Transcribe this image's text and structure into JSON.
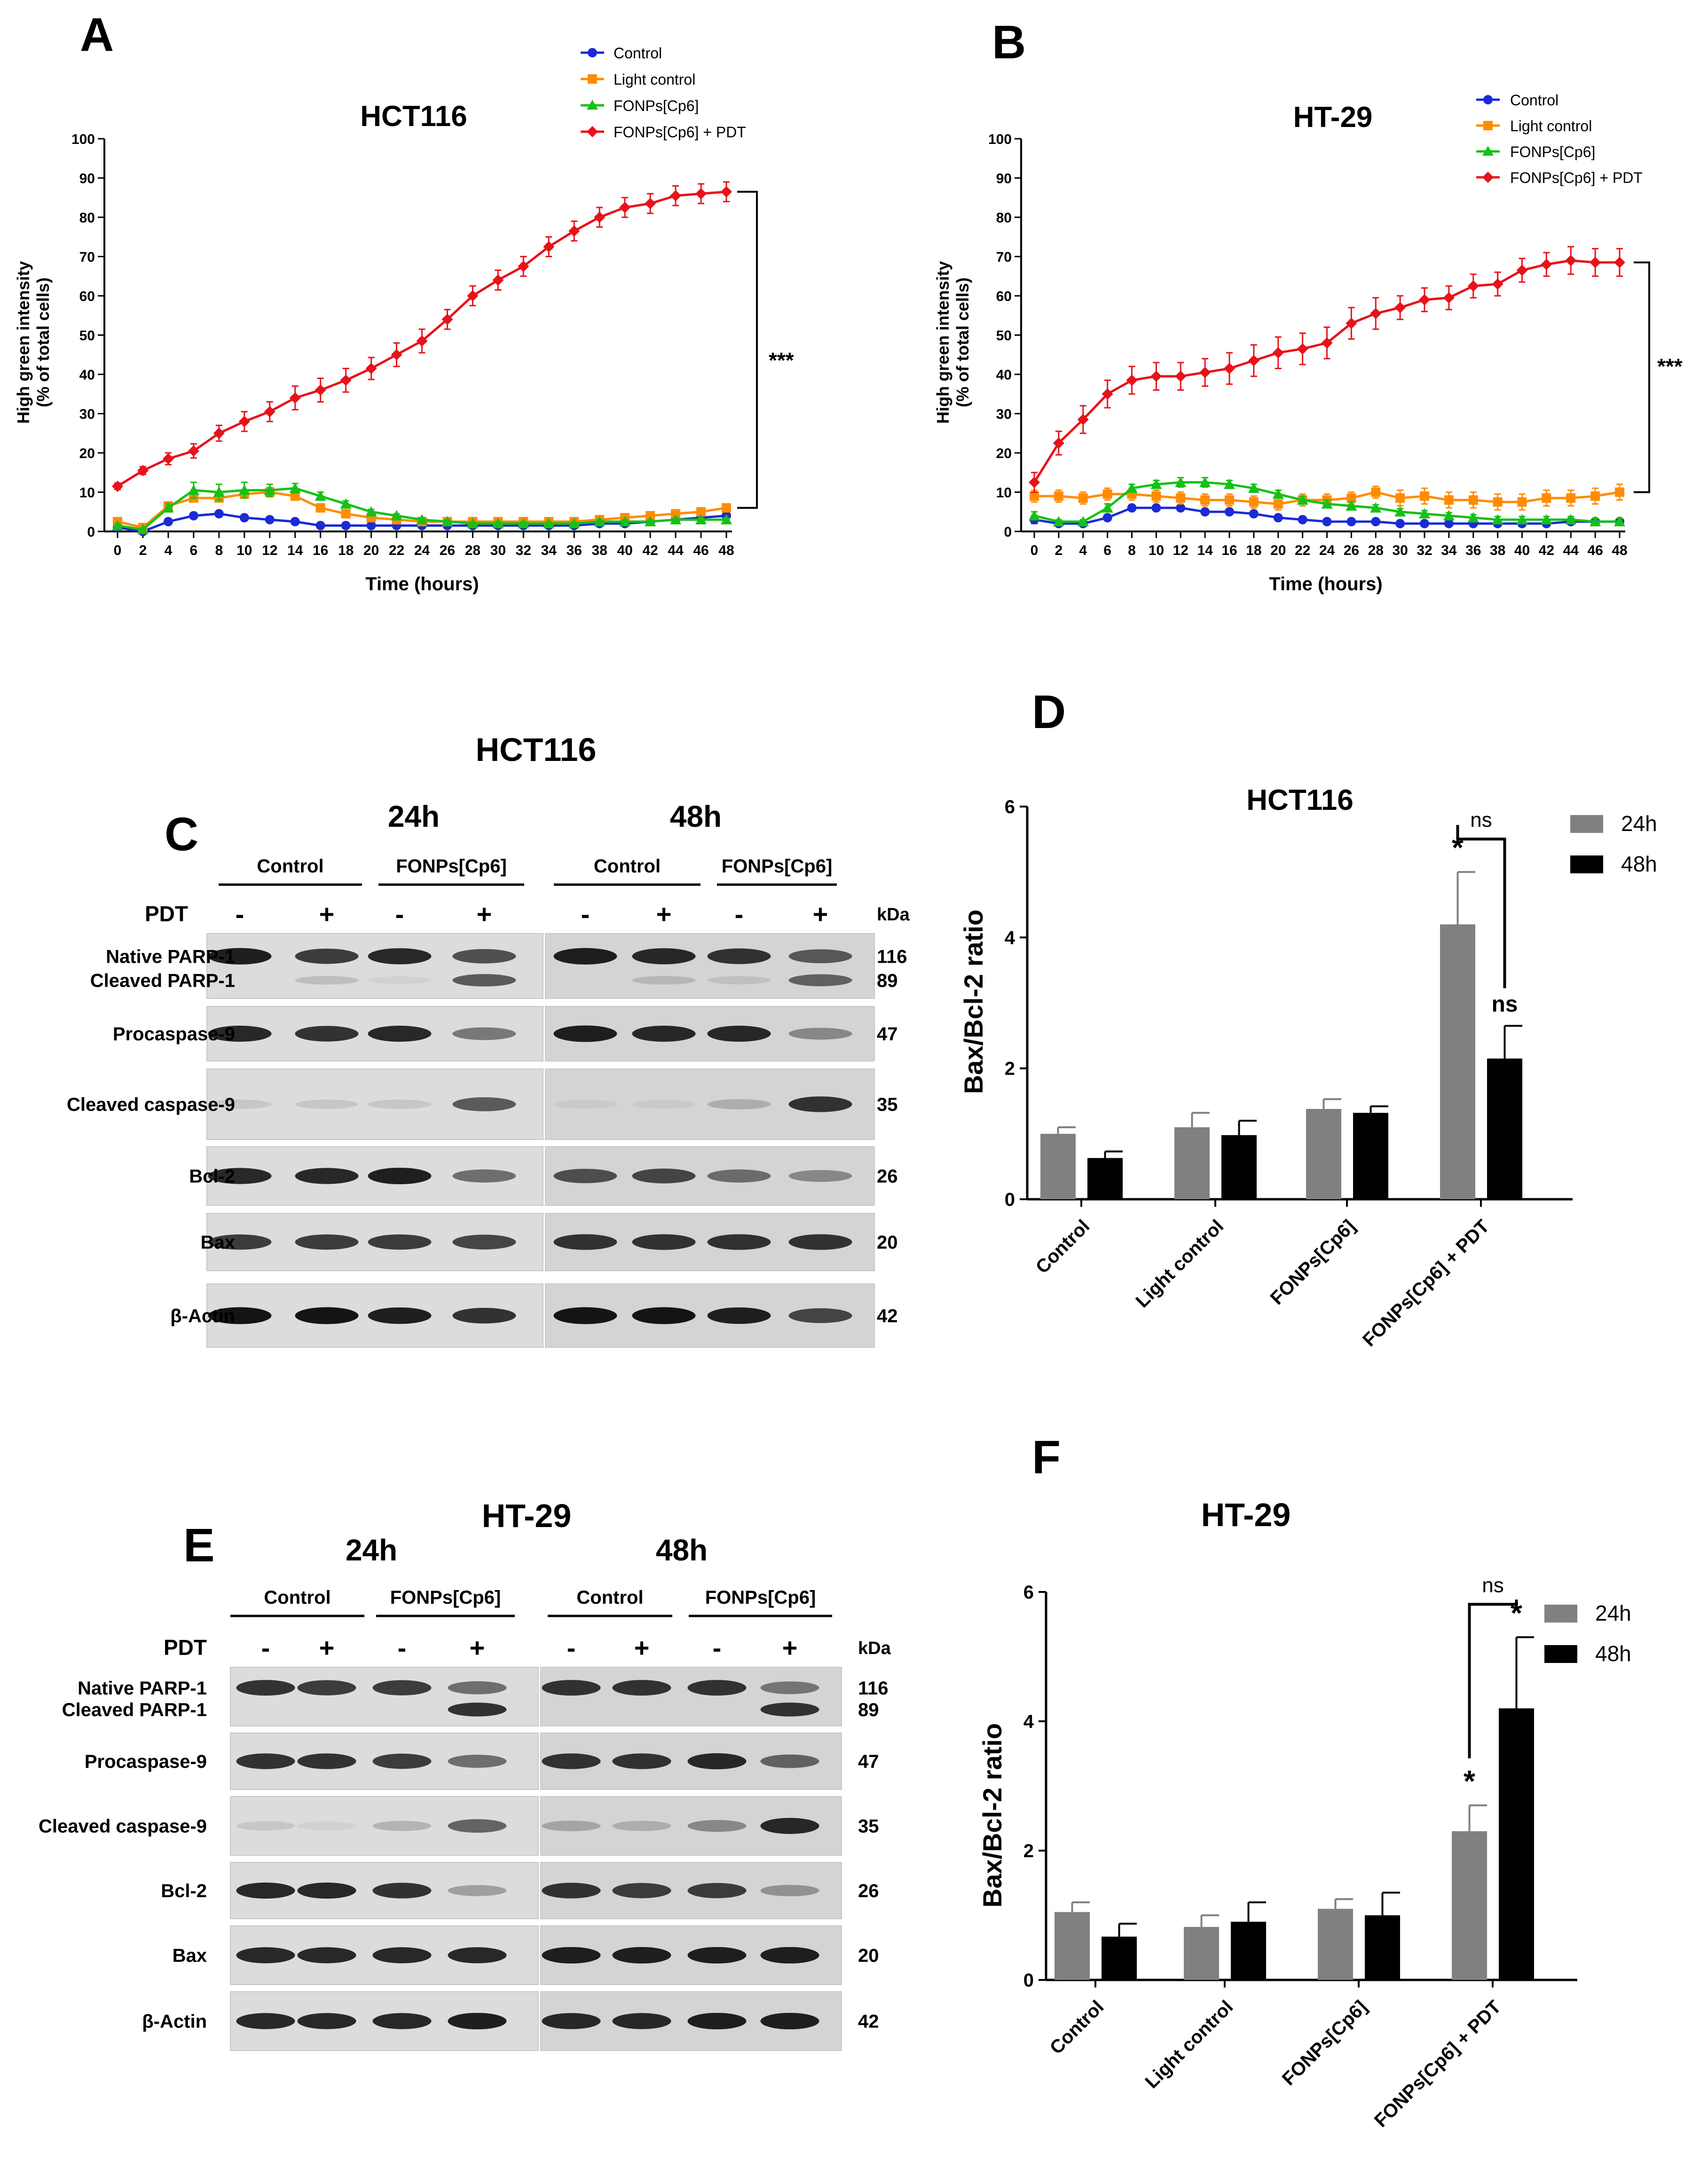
{
  "colors": {
    "control": "#1a2bd6",
    "light_control": "#ff8c00",
    "fonps": "#16c116",
    "fonps_pdt": "#e8121a",
    "bar24": "#808080",
    "bar48": "#000000"
  },
  "panels": {
    "A": {
      "letter": "A",
      "significance": "***"
    },
    "B": {
      "letter": "B",
      "significance": "***"
    },
    "C": {
      "letter": "C",
      "title": "HCT116"
    },
    "D": {
      "letter": "D",
      "sig_pdt_24": "*",
      "sig_pdt_48": "ns",
      "sig_bracket": "ns"
    },
    "E": {
      "letter": "E",
      "title": "HT-29"
    },
    "F": {
      "letter": "F",
      "sig_pdt_24": "*",
      "sig_pdt_48": "*",
      "sig_bracket": "ns"
    }
  },
  "chart_data": [
    {
      "id": "A",
      "type": "line",
      "title": "HCT116",
      "xlabel": "Time (hours)",
      "ylabel": "High green intensity",
      "ylabel2": "(% of total cells)",
      "xlim": [
        0,
        48
      ],
      "ylim": [
        0,
        100
      ],
      "x": [
        0,
        2,
        4,
        6,
        8,
        10,
        12,
        14,
        16,
        18,
        20,
        22,
        24,
        26,
        28,
        30,
        32,
        34,
        36,
        38,
        40,
        42,
        44,
        46,
        48
      ],
      "yticks": [
        0,
        10,
        20,
        30,
        40,
        50,
        60,
        70,
        80,
        90,
        100
      ],
      "series": [
        {
          "name": "Control",
          "key": "control",
          "marker": "circle",
          "values": [
            1,
            0,
            2.5,
            4,
            4.5,
            3.5,
            3,
            2.5,
            1.5,
            1.5,
            1.5,
            1.5,
            1.5,
            1.5,
            1.5,
            1.5,
            1.5,
            1.5,
            1.5,
            2,
            2,
            2.5,
            3,
            3.5,
            4
          ],
          "errors": [
            0.5,
            0.3,
            0.5,
            0.5,
            0.5,
            0.5,
            0.5,
            0.5,
            0.5,
            0.5,
            0.5,
            0.5,
            0.5,
            0.5,
            0.5,
            0.5,
            0.5,
            0.5,
            0.5,
            0.5,
            0.5,
            0.5,
            0.5,
            0.5,
            0.5
          ]
        },
        {
          "name": "Light control",
          "key": "light_control",
          "marker": "square",
          "values": [
            2.5,
            1,
            6.5,
            8.5,
            8.5,
            9.5,
            10,
            9,
            6,
            4.5,
            3.5,
            3,
            2.5,
            2.5,
            2.5,
            2.5,
            2.5,
            2.5,
            2.5,
            3,
            3.5,
            4,
            4.5,
            5,
            6
          ],
          "errors": [
            0.5,
            0.5,
            0.8,
            1,
            1,
            1,
            1.2,
            1,
            0.8,
            0.6,
            0.6,
            0.5,
            0.5,
            0.5,
            0.5,
            0.5,
            0.5,
            0.5,
            0.5,
            0.5,
            0.5,
            0.5,
            0.6,
            0.6,
            0.6
          ]
        },
        {
          "name": "FONPs[Cp6]",
          "key": "fonps",
          "marker": "triangle",
          "values": [
            1.5,
            0.5,
            6,
            10.5,
            10,
            10.5,
            10.5,
            11,
            9,
            7,
            5,
            4,
            3,
            2.5,
            2,
            2,
            2,
            2,
            2,
            2.5,
            2.5,
            2.5,
            3,
            3,
            3
          ],
          "errors": [
            0.4,
            0.3,
            1,
            2,
            2,
            2,
            1.5,
            1.2,
            1,
            0.8,
            0.6,
            0.5,
            0.5,
            0.4,
            0.4,
            0.4,
            0.4,
            0.4,
            0.4,
            0.4,
            0.4,
            0.4,
            0.4,
            0.4,
            0.4
          ]
        },
        {
          "name": "FONPs[Cp6] + PDT",
          "key": "fonps_pdt",
          "marker": "diamond",
          "values": [
            11.5,
            15.5,
            18.5,
            20.5,
            25,
            28,
            30.5,
            34,
            36,
            38.5,
            41.5,
            45,
            48.5,
            54,
            60,
            64,
            67.5,
            72.5,
            76.5,
            80,
            82.5,
            83.5,
            85.5,
            86,
            86.5
          ],
          "errors": [
            0.8,
            1,
            1.5,
            1.8,
            2,
            2.5,
            2.5,
            3,
            3,
            3,
            2.8,
            3,
            3,
            2.5,
            2.5,
            2.5,
            2.5,
            2.5,
            2.5,
            2.5,
            2.5,
            2.5,
            2.5,
            2.5,
            2.5
          ]
        }
      ]
    },
    {
      "id": "B",
      "type": "line",
      "title": "HT-29",
      "xlabel": "Time (hours)",
      "ylabel": "High green intensity",
      "ylabel2": "(% of total cells)",
      "xlim": [
        0,
        48
      ],
      "ylim": [
        0,
        100
      ],
      "x": [
        0,
        2,
        4,
        6,
        8,
        10,
        12,
        14,
        16,
        18,
        20,
        22,
        24,
        26,
        28,
        30,
        32,
        34,
        36,
        38,
        40,
        42,
        44,
        46,
        48
      ],
      "yticks": [
        0,
        10,
        20,
        30,
        40,
        50,
        60,
        70,
        80,
        90,
        100
      ],
      "series": [
        {
          "name": "Control",
          "key": "control",
          "marker": "circle",
          "values": [
            3,
            2,
            2,
            3.5,
            6,
            6,
            6,
            5,
            5,
            4.5,
            3.5,
            3,
            2.5,
            2.5,
            2.5,
            2,
            2,
            2,
            2,
            2,
            2,
            2,
            2.5,
            2.5,
            2.5
          ],
          "errors": [
            1,
            0.5,
            0.5,
            0.5,
            0.5,
            0.5,
            0.5,
            0.5,
            0.5,
            0.5,
            0.5,
            0.5,
            0.5,
            0.5,
            0.5,
            0.5,
            0.5,
            0.5,
            0.5,
            0.5,
            0.5,
            0.5,
            0.5,
            0.5,
            0.5
          ]
        },
        {
          "name": "Light control",
          "key": "light_control",
          "marker": "square",
          "values": [
            9,
            9,
            8.5,
            9.5,
            9.5,
            9,
            8.5,
            8,
            8,
            7.5,
            7,
            8,
            8,
            8.5,
            10,
            8.5,
            9,
            8,
            8,
            7.5,
            7.5,
            8.5,
            8.5,
            9,
            10
          ],
          "errors": [
            1.5,
            1.5,
            1.5,
            1.5,
            1.5,
            1.5,
            1.5,
            1.5,
            1.5,
            1.5,
            1.5,
            1.5,
            1.5,
            1.5,
            1.5,
            2,
            2,
            2,
            2,
            2,
            2,
            2,
            2,
            2,
            2
          ]
        },
        {
          "name": "FONPs[Cp6]",
          "key": "fonps",
          "marker": "triangle",
          "values": [
            4,
            2.5,
            2.5,
            6,
            11,
            12,
            12.5,
            12.5,
            12,
            11,
            9.5,
            8,
            7,
            6.5,
            6,
            5,
            4.5,
            4,
            3.5,
            3,
            3,
            3,
            3,
            2.5,
            2.5
          ],
          "errors": [
            1,
            0.5,
            0.5,
            1,
            1,
            1,
            1.2,
            1.2,
            1,
            1,
            1,
            1,
            1,
            1,
            0.8,
            0.8,
            0.8,
            0.8,
            0.8,
            0.8,
            0.8,
            0.8,
            0.8,
            0.8,
            0.8
          ]
        },
        {
          "name": "FONPs[Cp6] + PDT",
          "key": "fonps_pdt",
          "marker": "diamond",
          "values": [
            12.5,
            22.5,
            28.5,
            35,
            38.5,
            39.5,
            39.5,
            40.5,
            41.5,
            43.5,
            45.5,
            46.5,
            48,
            53,
            55.5,
            57,
            59,
            59.5,
            62.5,
            63,
            66.5,
            68,
            69,
            68.5,
            68.5
          ],
          "errors": [
            2.5,
            3,
            3.5,
            3.5,
            3.5,
            3.5,
            3.5,
            3.5,
            4,
            4,
            4,
            4,
            4,
            4,
            4,
            3,
            3,
            3,
            3,
            3,
            3,
            3,
            3.5,
            3.5,
            3.5
          ]
        }
      ]
    },
    {
      "id": "D",
      "type": "bar",
      "title": "HCT116",
      "ylabel": "Bax/Bcl-2 ratio",
      "ylim": [
        0,
        6
      ],
      "yticks": [
        0,
        2,
        4,
        6
      ],
      "categories": [
        "Control",
        "Light control",
        "FONPs[Cp6]",
        "FONPs[Cp6] + PDT"
      ],
      "series": [
        {
          "name": "24h",
          "key": "bar24",
          "values": [
            1.0,
            1.1,
            1.38,
            4.2
          ],
          "errors": [
            0.1,
            0.22,
            0.15,
            0.8
          ]
        },
        {
          "name": "48h",
          "key": "bar48",
          "values": [
            0.63,
            0.98,
            1.32,
            2.15
          ],
          "errors": [
            0.1,
            0.22,
            0.1,
            0.5
          ]
        }
      ]
    },
    {
      "id": "F",
      "type": "bar",
      "title": "HT-29",
      "ylabel": "Bax/Bcl-2 ratio",
      "ylim": [
        0,
        6
      ],
      "yticks": [
        0,
        2,
        4,
        6
      ],
      "categories": [
        "Control",
        "Light control",
        "FONPs[Cp6]",
        "FONPs[Cp6] + PDT"
      ],
      "series": [
        {
          "name": "24h",
          "key": "bar24",
          "values": [
            1.05,
            0.82,
            1.1,
            2.3
          ],
          "errors": [
            0.15,
            0.18,
            0.15,
            0.4
          ]
        },
        {
          "name": "48h",
          "key": "bar48",
          "values": [
            0.67,
            0.9,
            1.0,
            4.2
          ],
          "errors": [
            0.2,
            0.3,
            0.35,
            1.1
          ]
        }
      ]
    }
  ],
  "blots": {
    "C": {
      "times": [
        "24h",
        "48h"
      ],
      "groups": [
        "Control",
        "FONPs[Cp6]",
        "Control",
        "FONPs[Cp6]"
      ],
      "pdt_label": "PDT",
      "signs": [
        "-",
        "+",
        "-",
        "+",
        "-",
        "+",
        "-",
        "+"
      ],
      "kda": "kDa",
      "rows": [
        {
          "label": "Native PARP-1",
          "label2": "Cleaved PARP-1",
          "mw": "116",
          "mw2": "89",
          "bands": [
            0.95,
            0.8,
            0.9,
            0.7,
            0.95,
            0.9,
            0.85,
            0.65
          ],
          "bands2": [
            0,
            0.15,
            0.05,
            0.65,
            0,
            0.15,
            0.1,
            0.6
          ]
        },
        {
          "label": "Procaspase-9",
          "mw": "47",
          "bands": [
            0.9,
            0.85,
            0.9,
            0.5,
            0.95,
            0.9,
            0.9,
            0.4
          ]
        },
        {
          "label": "Cleaved caspase-9",
          "mw": "35",
          "bands": [
            0.1,
            0.1,
            0.1,
            0.65,
            0.05,
            0.05,
            0.2,
            0.85
          ]
        },
        {
          "label": "Bcl-2",
          "mw": "26",
          "bands": [
            0.9,
            0.9,
            0.95,
            0.55,
            0.7,
            0.75,
            0.55,
            0.4
          ]
        },
        {
          "label": "Bax",
          "mw": "20",
          "bands": [
            0.8,
            0.8,
            0.8,
            0.75,
            0.85,
            0.85,
            0.85,
            0.85
          ]
        },
        {
          "label": "β-Actin",
          "mw": "42",
          "bands": [
            1,
            1,
            0.95,
            0.85,
            1,
            1,
            0.95,
            0.75
          ]
        }
      ]
    },
    "E": {
      "times": [
        "24h",
        "48h"
      ],
      "groups": [
        "Control",
        "FONPs[Cp6]",
        "Control",
        "FONPs[Cp6]"
      ],
      "pdt_label": "PDT",
      "signs": [
        "-",
        "+",
        "-",
        "+",
        "-",
        "+",
        "-",
        "+"
      ],
      "kda": "kDa",
      "rows": [
        {
          "label": "Native PARP-1",
          "label2": "Cleaved PARP-1",
          "mw": "116",
          "mw2": "89",
          "bands": [
            0.85,
            0.8,
            0.8,
            0.55,
            0.85,
            0.85,
            0.85,
            0.5
          ],
          "bands2": [
            0,
            0,
            0,
            0.85,
            0,
            0,
            0,
            0.85
          ]
        },
        {
          "label": "Procaspase-9",
          "mw": "47",
          "bands": [
            0.85,
            0.85,
            0.8,
            0.55,
            0.85,
            0.85,
            0.9,
            0.6
          ]
        },
        {
          "label": "Cleaved caspase-9",
          "mw": "35",
          "bands": [
            0.1,
            0.05,
            0.2,
            0.6,
            0.25,
            0.2,
            0.4,
            0.9
          ]
        },
        {
          "label": "Bcl-2",
          "mw": "26",
          "bands": [
            0.9,
            0.9,
            0.85,
            0.3,
            0.85,
            0.8,
            0.8,
            0.35
          ]
        },
        {
          "label": "Bax",
          "mw": "20",
          "bands": [
            0.9,
            0.9,
            0.9,
            0.9,
            0.95,
            0.95,
            0.95,
            0.95
          ]
        },
        {
          "label": "β-Actin",
          "mw": "42",
          "bands": [
            0.9,
            0.9,
            0.9,
            0.95,
            0.9,
            0.9,
            0.95,
            0.95
          ]
        }
      ]
    }
  }
}
